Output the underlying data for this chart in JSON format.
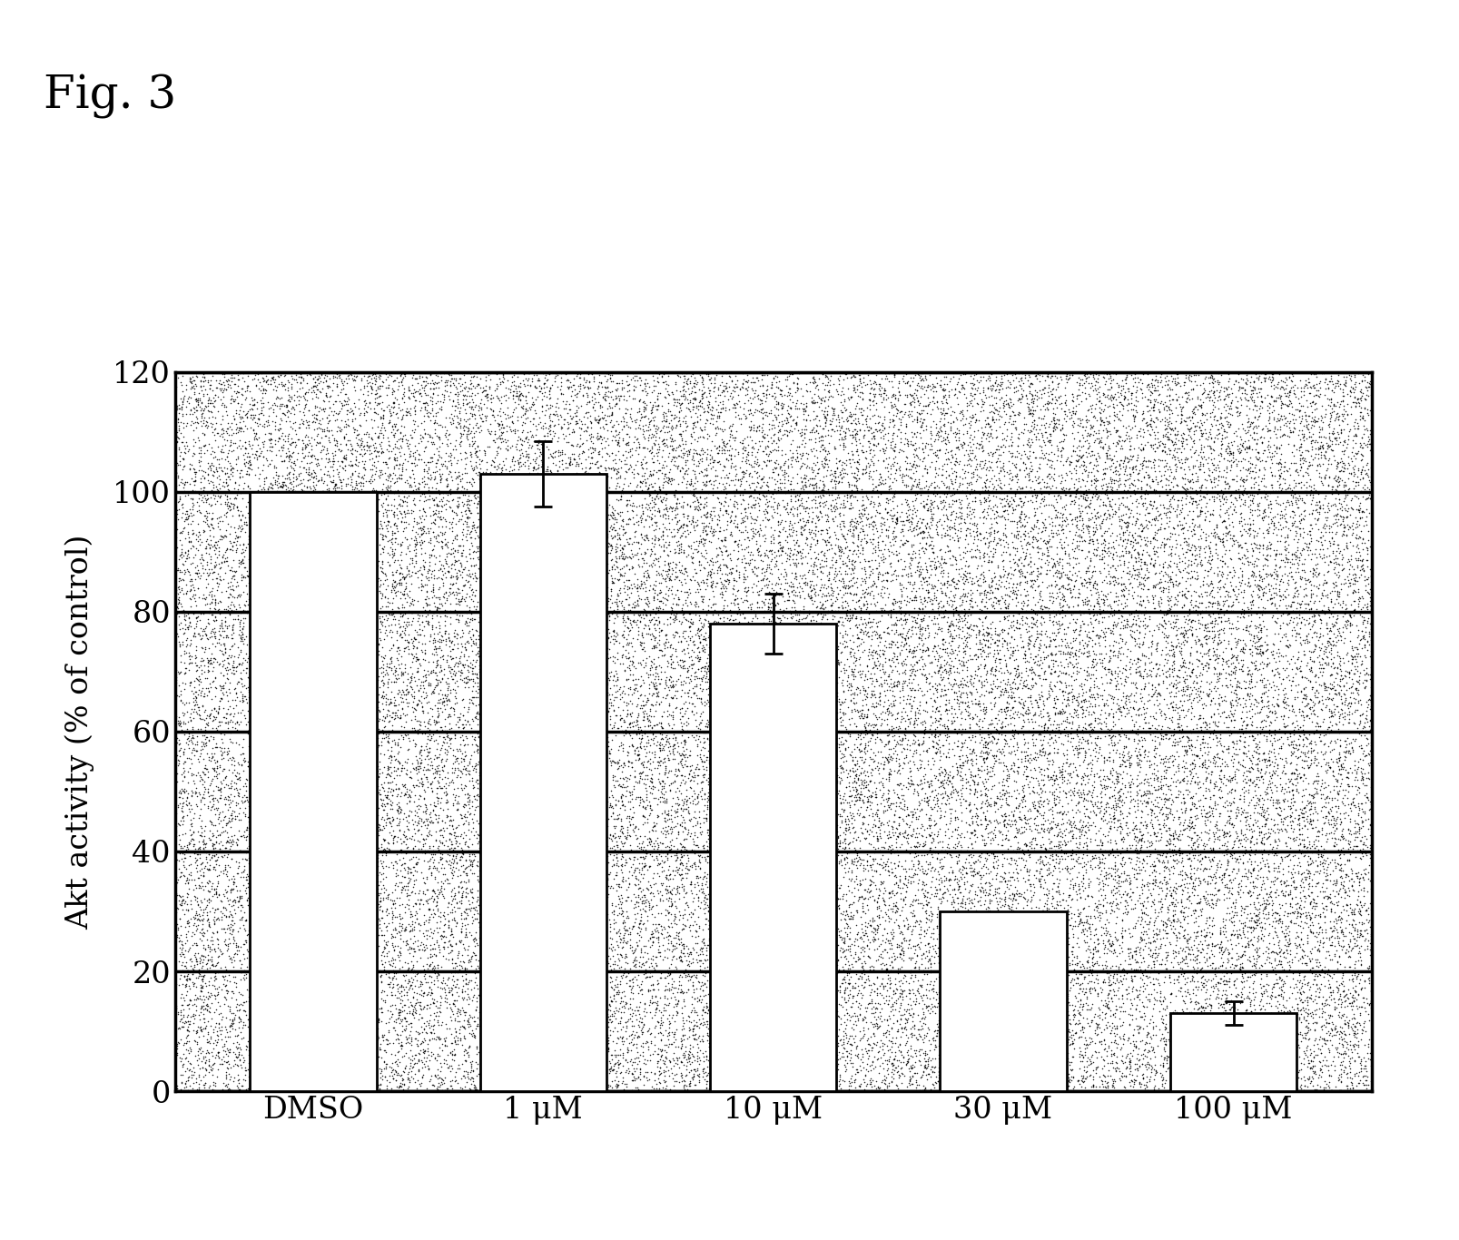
{
  "categories": [
    "DMSO",
    "1 μM",
    "10 μM",
    "30 μM",
    "100 μM"
  ],
  "values": [
    100.0,
    103.0,
    78.0,
    30.0,
    13.0
  ],
  "errors": [
    0.0,
    5.5,
    5.0,
    0.0,
    2.0
  ],
  "ylabel": "Akt activity (% of control)",
  "ylim": [
    0,
    120
  ],
  "yticks": [
    0,
    20,
    40,
    60,
    80,
    100,
    120
  ],
  "title": "Fig. 3",
  "bar_color": "#ffffff",
  "bar_edgecolor": "#000000",
  "background_color": "#ffffff",
  "bar_width": 0.55,
  "figsize": [
    16.07,
    13.66
  ],
  "dpi": 100,
  "n_stipple_dots": 60000,
  "stipple_size": 1.2,
  "stipple_alpha": 0.85,
  "grid_linewidth": 2.5,
  "spine_linewidth": 2.5
}
